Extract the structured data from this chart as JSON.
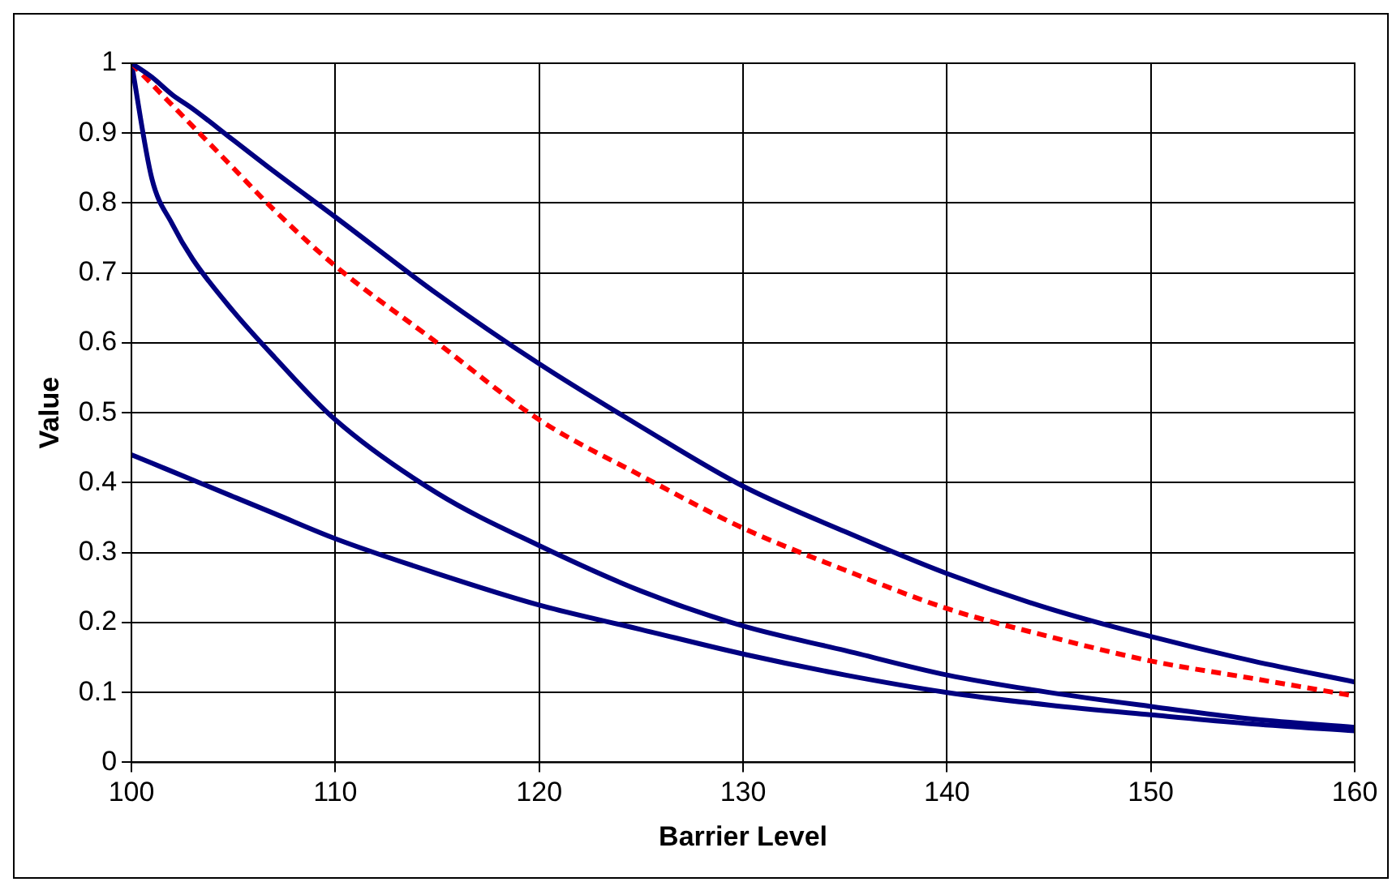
{
  "chart_data": {
    "type": "line",
    "xlabel": "Barrier Level",
    "ylabel": "Value",
    "x": [
      100,
      101,
      102,
      103,
      105,
      107,
      110,
      115,
      120,
      125,
      130,
      135,
      140,
      145,
      150,
      155,
      160
    ],
    "series": [
      {
        "color": "#000080",
        "values": [
          1,
          0.98,
          0.955,
          0.935,
          0.89,
          0.845,
          0.78,
          0.67,
          0.57,
          0.48,
          0.395,
          0.33,
          0.27,
          0.22,
          0.18,
          0.145,
          0.115
        ]
      },
      {
        "color": "#ff0000",
        "line_style": "dashed",
        "values": [
          1,
          0.97,
          0.94,
          0.91,
          0.85,
          0.79,
          0.71,
          0.6,
          0.49,
          0.41,
          0.335,
          0.275,
          0.22,
          0.18,
          0.145,
          0.12,
          0.095
        ]
      },
      {
        "color": "#000080",
        "values": [
          1,
          0.835,
          0.77,
          0.72,
          0.645,
          0.58,
          0.49,
          0.385,
          0.31,
          0.245,
          0.195,
          0.16,
          0.125,
          0.1,
          0.08,
          0.062,
          0.05
        ]
      },
      {
        "color": "#000080",
        "values": [
          0.44,
          0.428,
          0.416,
          0.404,
          0.38,
          0.356,
          0.32,
          0.27,
          0.225,
          0.19,
          0.155,
          0.125,
          0.1,
          0.082,
          0.068,
          0.055,
          0.045
        ]
      }
    ],
    "xlim": [
      100,
      160
    ],
    "xticks": [
      100,
      110,
      120,
      130,
      140,
      150,
      160
    ],
    "ylim": [
      0,
      1
    ],
    "yticks": [
      0,
      0.1,
      0.2,
      0.3,
      0.4,
      0.5,
      0.6,
      0.7,
      0.8,
      0.9,
      1
    ],
    "grid": true,
    "legend": false,
    "marker": "none",
    "line_style": "solid"
  }
}
